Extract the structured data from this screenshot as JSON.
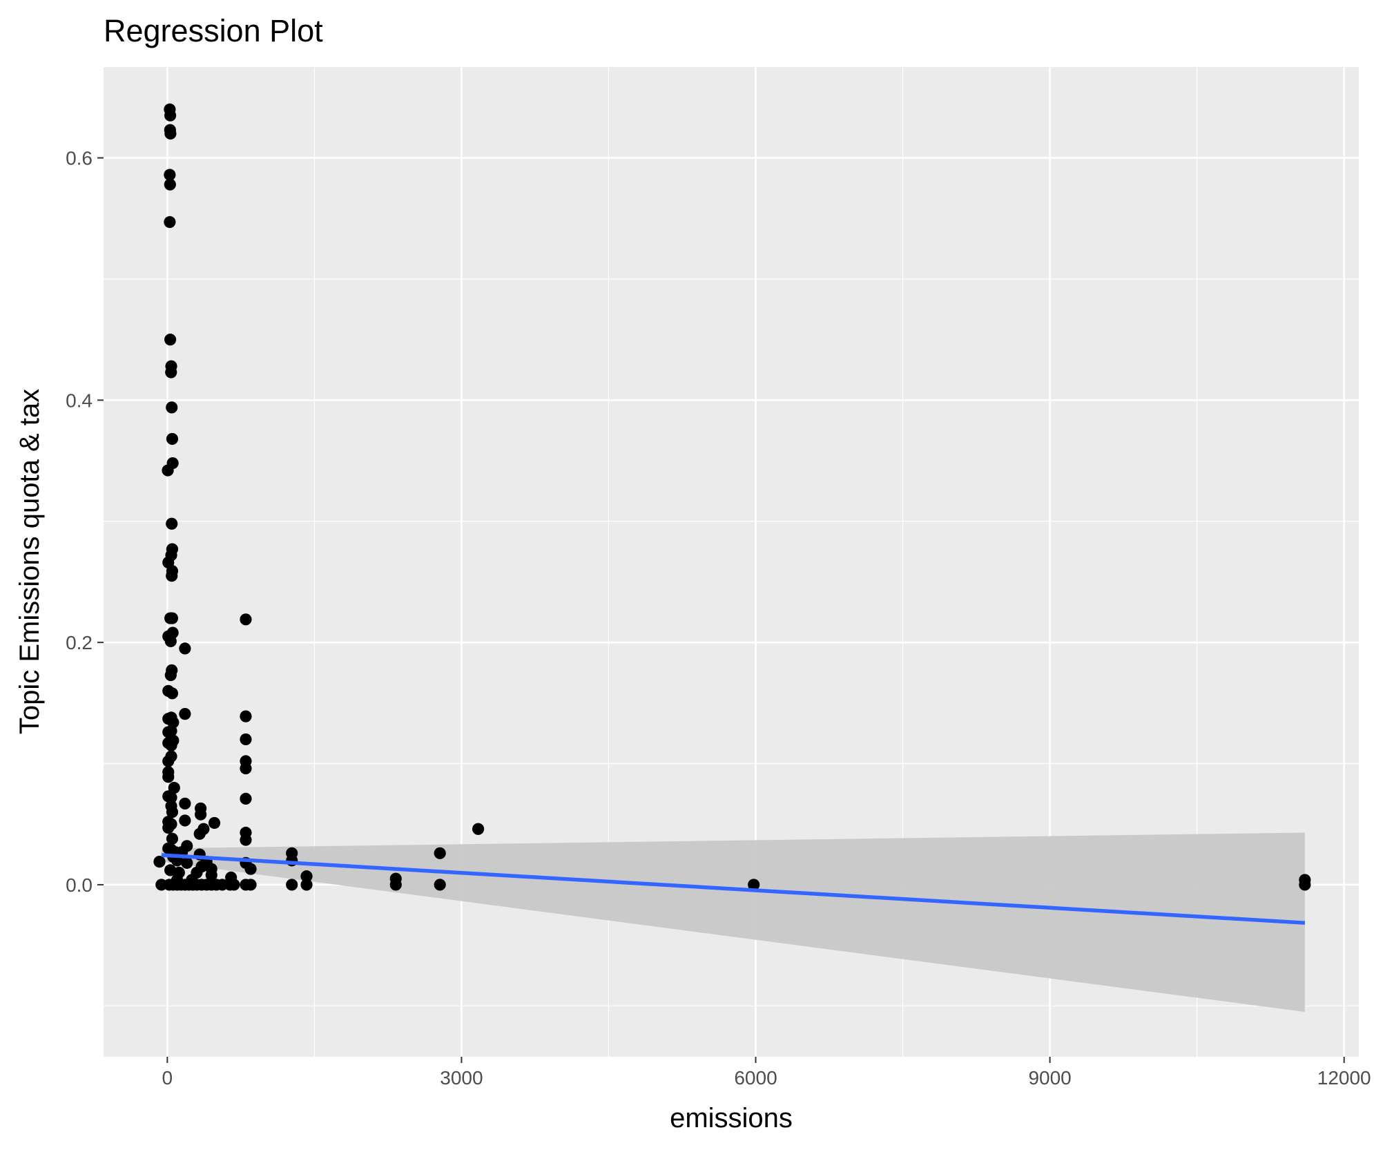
{
  "chart_data": {
    "type": "scatter",
    "title": "Regression Plot",
    "xlabel": "emissions",
    "ylabel": "Topic Emissions quota & tax",
    "xlim": [
      -650,
      12150
    ],
    "ylim": [
      -0.142,
      0.675
    ],
    "x_ticks": [
      0,
      3000,
      6000,
      9000,
      12000
    ],
    "x_tick_labels": [
      "0",
      "3000",
      "6000",
      "9000",
      "12000"
    ],
    "y_ticks": [
      0.0,
      0.2,
      0.4,
      0.6
    ],
    "y_tick_labels": [
      "0.0",
      "0.2",
      "0.4",
      "0.6"
    ],
    "grid": true,
    "background": "#EBEBEB",
    "point_color": "#000000",
    "line_color": "#3366FF",
    "band_color": "#C8C8C8",
    "regression": {
      "x_start": -60,
      "x_end": 11600,
      "y_start": 0.0245,
      "y_end": -0.0315,
      "ci_upper_start": 0.03,
      "ci_upper_end": 0.043,
      "ci_lower_start": 0.019,
      "ci_lower_end": -0.105
    },
    "points": [
      [
        25,
        0.64
      ],
      [
        30,
        0.635
      ],
      [
        28,
        0.623
      ],
      [
        32,
        0.62
      ],
      [
        25,
        0.586
      ],
      [
        28,
        0.578
      ],
      [
        25,
        0.547
      ],
      [
        30,
        0.45
      ],
      [
        40,
        0.428
      ],
      [
        38,
        0.423
      ],
      [
        45,
        0.394
      ],
      [
        50,
        0.368
      ],
      [
        55,
        0.348
      ],
      [
        5,
        0.342
      ],
      [
        45,
        0.298
      ],
      [
        50,
        0.277
      ],
      [
        40,
        0.272
      ],
      [
        10,
        0.266
      ],
      [
        50,
        0.259
      ],
      [
        45,
        0.255
      ],
      [
        30,
        0.22
      ],
      [
        50,
        0.22
      ],
      [
        10,
        0.205
      ],
      [
        55,
        0.208
      ],
      [
        35,
        0.201
      ],
      [
        180,
        0.195
      ],
      [
        800,
        0.219
      ],
      [
        45,
        0.177
      ],
      [
        35,
        0.173
      ],
      [
        10,
        0.16
      ],
      [
        50,
        0.158
      ],
      [
        180,
        0.141
      ],
      [
        800,
        0.139
      ],
      [
        10,
        0.137
      ],
      [
        40,
        0.138
      ],
      [
        60,
        0.134
      ],
      [
        10,
        0.126
      ],
      [
        40,
        0.127
      ],
      [
        10,
        0.117
      ],
      [
        60,
        0.119
      ],
      [
        40,
        0.115
      ],
      [
        800,
        0.12
      ],
      [
        40,
        0.106
      ],
      [
        10,
        0.102
      ],
      [
        800,
        0.102
      ],
      [
        800,
        0.096
      ],
      [
        10,
        0.093
      ],
      [
        10,
        0.089
      ],
      [
        70,
        0.08
      ],
      [
        10,
        0.073
      ],
      [
        40,
        0.072
      ],
      [
        180,
        0.067
      ],
      [
        800,
        0.071
      ],
      [
        40,
        0.065
      ],
      [
        50,
        0.06
      ],
      [
        340,
        0.063
      ],
      [
        340,
        0.058
      ],
      [
        10,
        0.052
      ],
      [
        20,
        0.049
      ],
      [
        180,
        0.053
      ],
      [
        40,
        0.05
      ],
      [
        480,
        0.051
      ],
      [
        370,
        0.046
      ],
      [
        10,
        0.047
      ],
      [
        330,
        0.042
      ],
      [
        800,
        0.043
      ],
      [
        3170,
        0.046
      ],
      [
        800,
        0.037
      ],
      [
        50,
        0.038
      ],
      [
        200,
        0.032
      ],
      [
        10,
        0.03
      ],
      [
        40,
        0.029
      ],
      [
        80,
        0.027
      ],
      [
        150,
        0.027
      ],
      [
        1270,
        0.026
      ],
      [
        2780,
        0.026
      ],
      [
        330,
        0.025
      ],
      [
        60,
        0.023
      ],
      [
        -80,
        0.019
      ],
      [
        100,
        0.02
      ],
      [
        200,
        0.018
      ],
      [
        400,
        0.019
      ],
      [
        800,
        0.018
      ],
      [
        1270,
        0.02
      ],
      [
        350,
        0.015
      ],
      [
        450,
        0.013
      ],
      [
        850,
        0.013
      ],
      [
        30,
        0.012
      ],
      [
        120,
        0.01
      ],
      [
        300,
        0.01
      ],
      [
        450,
        0.008
      ],
      [
        650,
        0.006
      ],
      [
        1420,
        0.007
      ],
      [
        2330,
        0.005
      ],
      [
        11600,
        0.004
      ],
      [
        100,
        0.004
      ],
      [
        250,
        0.004
      ],
      [
        -60,
        0.0
      ],
      [
        20,
        0.0
      ],
      [
        60,
        0.0
      ],
      [
        100,
        0.0
      ],
      [
        140,
        0.0
      ],
      [
        180,
        0.0
      ],
      [
        220,
        0.0
      ],
      [
        260,
        0.0
      ],
      [
        300,
        0.0
      ],
      [
        350,
        0.0
      ],
      [
        400,
        0.0
      ],
      [
        450,
        0.0
      ],
      [
        500,
        0.0
      ],
      [
        560,
        0.0
      ],
      [
        640,
        0.0
      ],
      [
        680,
        0.0
      ],
      [
        800,
        0.0
      ],
      [
        850,
        0.0
      ],
      [
        1270,
        0.0
      ],
      [
        1420,
        0.0
      ],
      [
        2330,
        0.0
      ],
      [
        2780,
        0.0
      ],
      [
        5980,
        0.0
      ],
      [
        11600,
        0.0
      ]
    ]
  }
}
